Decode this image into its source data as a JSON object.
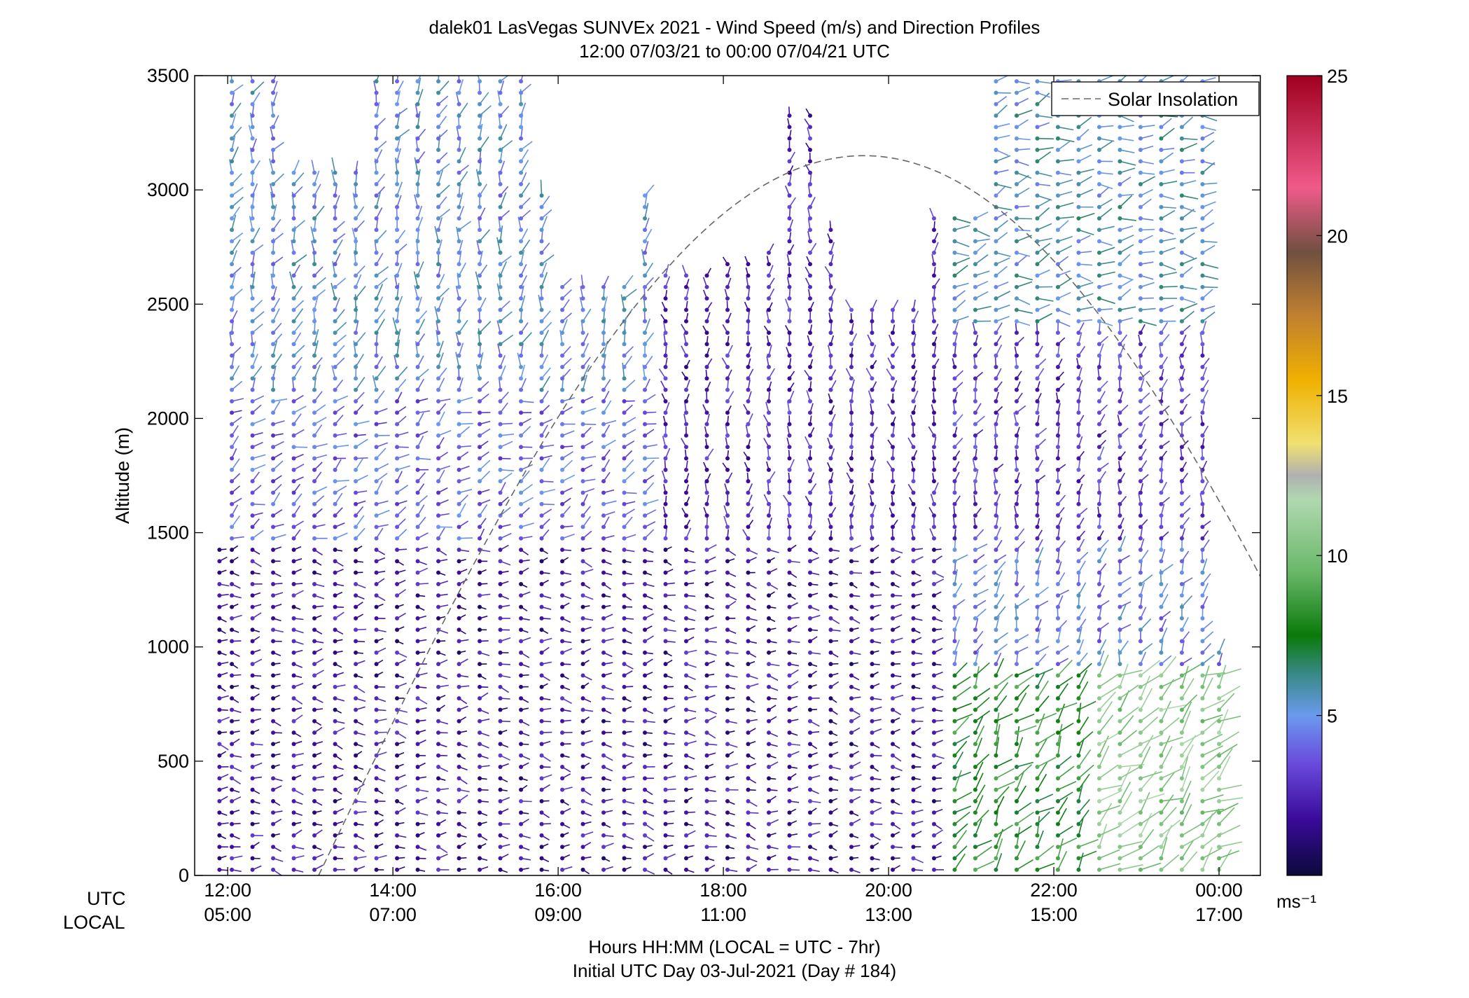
{
  "title_line1": "dalek01 LasVegas SUNVEx 2021 - Wind Speed (m/s) and Direction Profiles",
  "title_line2": "12:00 07/03/21 to 00:00 07/04/21  UTC",
  "xaxis_row1_label": "UTC",
  "xaxis_row2_label": "LOCAL",
  "xaxis_caption": "Hours HH:MM  (LOCAL = UTC - 7hr)",
  "xaxis_caption2": "Initial UTC Day 03-Jul-2021 (Day # 184)",
  "colorbar_unit": "ms⁻¹",
  "chart_data": {
    "type": "wind-barb-profile",
    "ylabel": "Altitude (m)",
    "ylim": [
      0,
      3500
    ],
    "yticks": [
      0,
      500,
      1000,
      1500,
      2000,
      2500,
      3000,
      3500
    ],
    "xlim_utc_hours": [
      11.6,
      24.5
    ],
    "xticks_utc_hours": [
      12,
      14,
      16,
      18,
      20,
      22,
      24
    ],
    "xtick_labels_utc": [
      "12:00",
      "14:00",
      "16:00",
      "18:00",
      "20:00",
      "22:00",
      "00:00"
    ],
    "xtick_labels_local": [
      "05:00",
      "07:00",
      "09:00",
      "11:00",
      "13:00",
      "15:00",
      "17:00"
    ],
    "legend": {
      "entry": "Solar Insolation",
      "style": "dashed gray",
      "placement": "top-right"
    },
    "colorbar": {
      "min": 0,
      "max": 25,
      "ticks": [
        5,
        10,
        15,
        20,
        25
      ],
      "unit": "m/s",
      "colors": [
        "#0a0a3a",
        "#3a0a9a",
        "#6a4adc",
        "#6a9aee",
        "#3a8a8a",
        "#0a7a0a",
        "#6ab86a",
        "#b0d8b0",
        "#b0b0b0",
        "#f0e070",
        "#f0b000",
        "#c08030",
        "#705040",
        "#f05a8a",
        "#a00020"
      ]
    },
    "solar_insolation_curve": {
      "start_utc": 13.1,
      "peak_utc": 19.7,
      "peak_altitude_equiv": 3150,
      "end_utc": 24.5,
      "end_altitude_equiv": 1490
    },
    "profile_times_utc": [
      11.9,
      12.05,
      12.3,
      12.55,
      12.8,
      13.05,
      13.3,
      13.55,
      13.8,
      14.05,
      14.3,
      14.55,
      14.8,
      15.05,
      15.3,
      15.55,
      15.8,
      16.05,
      16.3,
      16.55,
      16.8,
      17.05,
      17.3,
      17.55,
      17.8,
      18.05,
      18.3,
      18.55,
      18.8,
      19.05,
      19.3,
      19.55,
      19.8,
      20.05,
      20.3,
      20.55,
      20.8,
      21.05,
      21.3,
      21.55,
      21.8,
      22.05,
      22.3,
      22.55,
      22.8,
      23.05,
      23.3,
      23.55,
      23.8,
      24.0
    ],
    "profile_top_altitudes_m": [
      1450,
      3480,
      3480,
      3480,
      3120,
      3120,
      3120,
      3120,
      3480,
      3480,
      3480,
      3480,
      3480,
      3480,
      3480,
      3480,
      3000,
      2600,
      2600,
      2600,
      2600,
      2980,
      2650,
      2650,
      2650,
      2700,
      2700,
      2750,
      3350,
      3350,
      2850,
      2500,
      2500,
      2500,
      2500,
      2900,
      2900,
      2900,
      3480,
      3480,
      3480,
      3480,
      3480,
      3480,
      3480,
      3480,
      3480,
      3480,
      3480,
      1010
    ],
    "regimes": [
      {
        "utc_start": 11.9,
        "utc_end": 20.7,
        "alt_from": 0,
        "alt_to": 1450,
        "speed_ms": 2.0,
        "dir_deg": 270
      },
      {
        "utc_start": 11.9,
        "utc_end": 17.2,
        "alt_from": 1450,
        "alt_to": 2100,
        "speed_ms": 4.0,
        "dir_deg": 240
      },
      {
        "utc_start": 11.9,
        "utc_end": 17.2,
        "alt_from": 2100,
        "alt_to": 3500,
        "speed_ms": 5.0,
        "dir_deg": 200
      },
      {
        "utc_start": 17.2,
        "utc_end": 20.7,
        "alt_from": 1450,
        "alt_to": 3500,
        "speed_ms": 2.5,
        "dir_deg": 180
      },
      {
        "utc_start": 20.7,
        "utc_end": 22.5,
        "alt_from": 0,
        "alt_to": 900,
        "speed_ms": 8.0,
        "dir_deg": 220
      },
      {
        "utc_start": 22.5,
        "utc_end": 24.1,
        "alt_from": 0,
        "alt_to": 900,
        "speed_ms": 10.5,
        "dir_deg": 230
      },
      {
        "utc_start": 20.7,
        "utc_end": 24.1,
        "alt_from": 900,
        "alt_to": 1450,
        "speed_ms": 4.5,
        "dir_deg": 210
      },
      {
        "utc_start": 20.7,
        "utc_end": 24.1,
        "alt_from": 1450,
        "alt_to": 2400,
        "speed_ms": 3.0,
        "dir_deg": 200
      },
      {
        "utc_start": 20.7,
        "utc_end": 24.1,
        "alt_from": 2400,
        "alt_to": 3500,
        "speed_ms": 5.5,
        "dir_deg": 260
      }
    ]
  }
}
